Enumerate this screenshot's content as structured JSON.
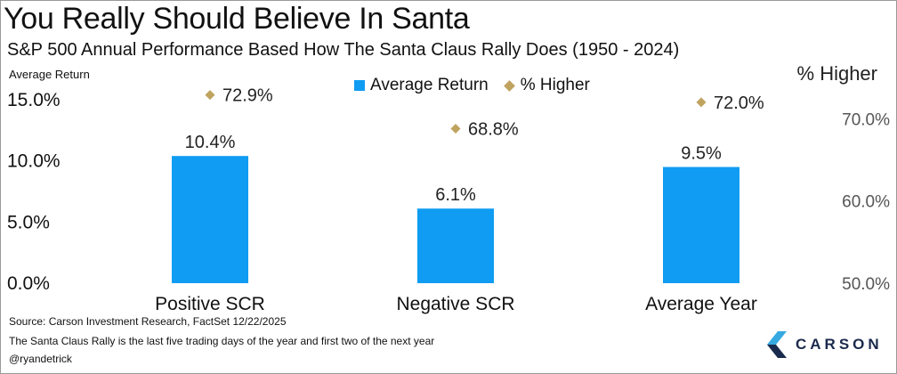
{
  "chart_data": {
    "type": "bar",
    "title": "You Really Should Believe In Santa",
    "subtitle": "S&P 500 Annual Performance Based How The Santa Claus Rally Does (1950 - 2024)",
    "categories": [
      "Positive SCR",
      "Negative SCR",
      "Average Year"
    ],
    "series": [
      {
        "name": "Average Return",
        "axis": "left",
        "values": [
          10.4,
          6.1,
          9.5
        ],
        "labels": [
          "10.4%",
          "6.1%",
          "9.5%"
        ],
        "color": "#0f9cf2"
      },
      {
        "name": "% Higher",
        "axis": "right",
        "marker": "diamond",
        "values": [
          72.9,
          68.8,
          72.0
        ],
        "labels": [
          "72.9%",
          "68.8%",
          "72.0%"
        ],
        "color": "#bfa35f"
      }
    ],
    "ylabel": "Average Return",
    "ylabel_right": "% Higher",
    "ylim": [
      0,
      15
    ],
    "yticks": [
      0,
      5,
      10,
      15
    ],
    "ytick_labels": [
      "0.0%",
      "5.0%",
      "10.0%",
      "15.0%"
    ],
    "ylim_right": [
      50,
      76
    ],
    "yticks_right": [
      50,
      60,
      70
    ],
    "ytick_labels_right": [
      "50.0%",
      "60.0%",
      "70.0%"
    ],
    "grid": false,
    "legend_position": "top-center"
  },
  "footer": {
    "source": "Source: Carson Investment Research, FactSet 12/22/2025",
    "note": "The Santa Claus Rally is the last five trading days of the year and first two of the next year",
    "handle": "@ryandetrick"
  },
  "logo": {
    "text": "CARSON",
    "colors": {
      "light": "#36a9e1",
      "dark": "#1a2a4c"
    }
  }
}
